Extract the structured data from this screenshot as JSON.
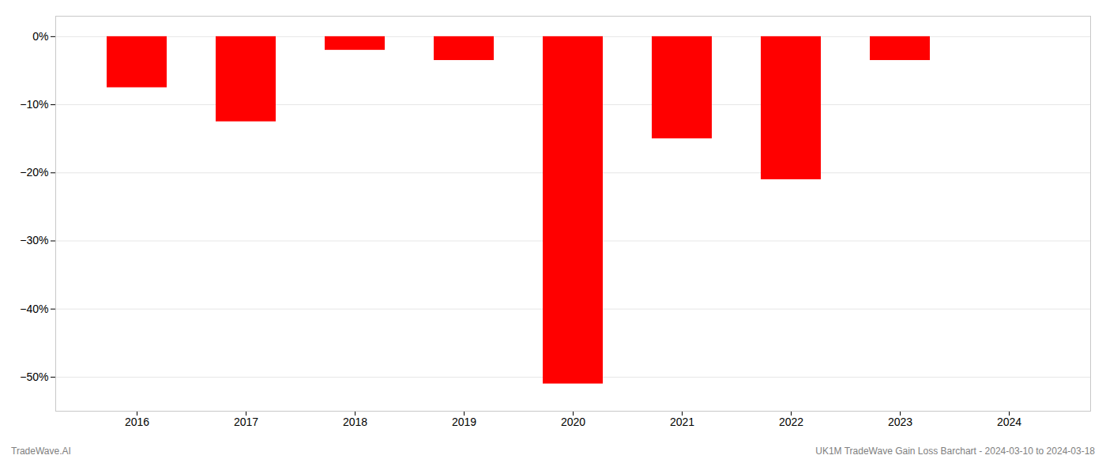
{
  "chart_data": {
    "type": "bar",
    "categories": [
      "2016",
      "2017",
      "2018",
      "2019",
      "2020",
      "2021",
      "2022",
      "2023",
      "2024"
    ],
    "values": [
      -7.5,
      -12.5,
      -2.0,
      -3.5,
      -51.0,
      -15.0,
      -21.0,
      -3.5,
      0
    ],
    "color": "#ff0000",
    "ylim": [
      -55,
      3
    ],
    "yticks": [
      {
        "value": 0,
        "label": "0%"
      },
      {
        "value": -10,
        "label": "−10%"
      },
      {
        "value": -20,
        "label": "−20%"
      },
      {
        "value": -30,
        "label": "−30%"
      },
      {
        "value": -40,
        "label": "−40%"
      },
      {
        "value": -50,
        "label": "−50%"
      }
    ],
    "grid": true,
    "annotations": [
      "TradeWave.AI",
      "UK1M TradeWave Gain Loss Barchart - 2024-03-10 to 2024-03-18"
    ]
  }
}
